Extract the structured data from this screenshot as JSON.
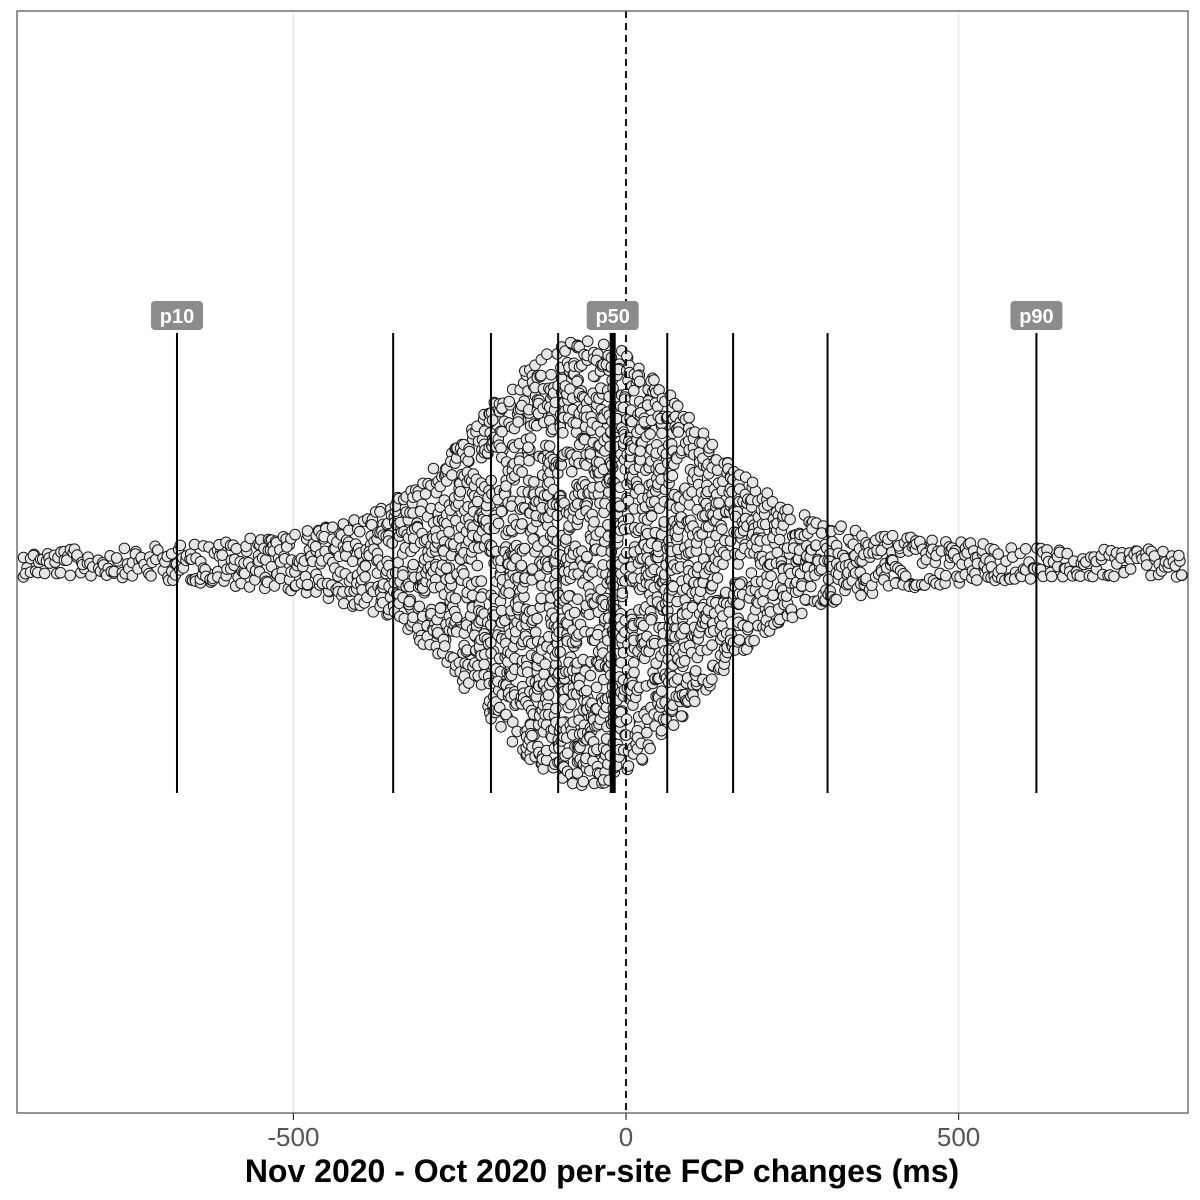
{
  "chart_data": {
    "type": "scatter",
    "subtype": "beeswarm",
    "title": "",
    "xlabel": "Nov 2020 - Oct 2020 per-site FCP changes (ms)",
    "ylabel": "",
    "xlim": [
      -880,
      845
    ],
    "x_ticks": [
      -500,
      0,
      500
    ],
    "x_tick_labels": [
      "-500",
      "0",
      "500"
    ],
    "grid": "vertical-major",
    "reference_line": {
      "x": 0,
      "style": "dashed"
    },
    "percentiles": [
      {
        "name": "p10",
        "x": -675,
        "labeled": true,
        "emphasis": false
      },
      {
        "name": "p20",
        "x": -350,
        "labeled": false,
        "emphasis": false
      },
      {
        "name": "p30",
        "x": -203,
        "labeled": false,
        "emphasis": false
      },
      {
        "name": "p40",
        "x": -102,
        "labeled": false,
        "emphasis": false
      },
      {
        "name": "p50",
        "x": -20,
        "labeled": true,
        "emphasis": true
      },
      {
        "name": "p60",
        "x": 62,
        "labeled": false,
        "emphasis": false
      },
      {
        "name": "p70",
        "x": 161,
        "labeled": false,
        "emphasis": false
      },
      {
        "name": "p80",
        "x": 303,
        "labeled": false,
        "emphasis": false
      },
      {
        "name": "p90",
        "x": 617,
        "labeled": true,
        "emphasis": false
      }
    ],
    "colors": {
      "point_fill": "#e6e6e6",
      "point_stroke": "#1a1a1a",
      "label_bg": "#8c8c8c",
      "label_text": "#ffffff",
      "grid": "#ebebeb",
      "panel_border": "#4d4d4d"
    }
  }
}
